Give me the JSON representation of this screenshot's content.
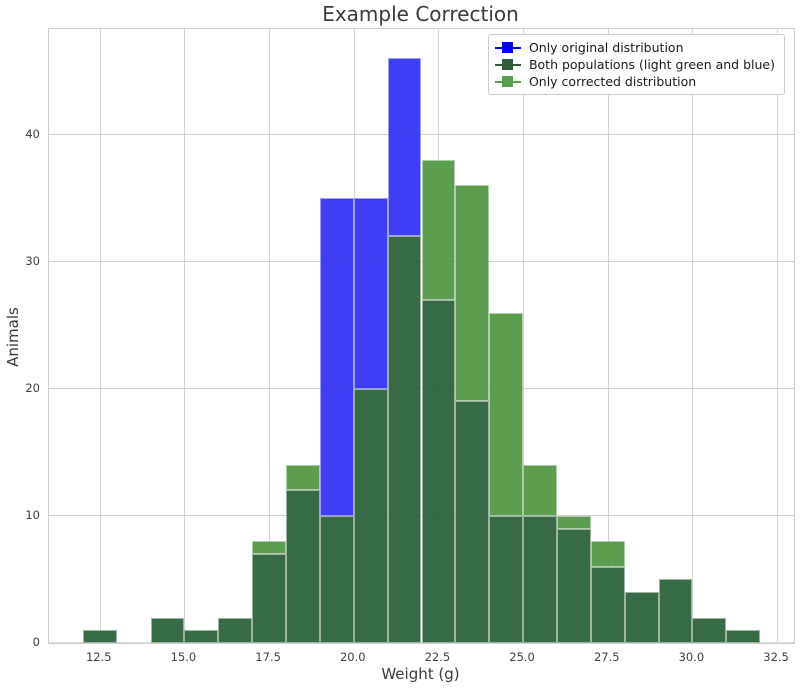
{
  "chart_data": {
    "type": "histogram",
    "title": "Example Correction",
    "xlabel": "Weight (g)",
    "ylabel": "Animals",
    "xlim": [
      11,
      33
    ],
    "ylim": [
      0,
      48.3
    ],
    "xtick_values": [
      12.5,
      15.0,
      17.5,
      20.0,
      22.5,
      25.0,
      27.5,
      30.0,
      32.5
    ],
    "xtick_labels": [
      "12.5",
      "15.0",
      "17.5",
      "20.0",
      "22.5",
      "25.0",
      "27.5",
      "30.0",
      "32.5"
    ],
    "ytick_values": [
      0,
      10,
      20,
      30,
      40
    ],
    "ytick_labels": [
      "0",
      "10",
      "20",
      "30",
      "40"
    ],
    "grid": true,
    "legend_position": "upper right",
    "legend": [
      {
        "name": "original",
        "label": "Only original distribution",
        "color": "#0202f0"
      },
      {
        "name": "both",
        "label": "Both populations (light green and blue)",
        "color": "#2e5c3c"
      },
      {
        "name": "corrected",
        "label": "Only corrected distribution",
        "color": "#57a04e"
      }
    ],
    "bar_colors": {
      "original_only": "#3e3ef4",
      "both": "#366b45",
      "corrected_only": "#5c9e50"
    },
    "bin_width": 1,
    "bins": [
      {
        "x0": 12,
        "x1": 13,
        "both": 1,
        "original": null,
        "corrected": null
      },
      {
        "x0": 13,
        "x1": 14,
        "both": 0,
        "original": null,
        "corrected": null
      },
      {
        "x0": 14,
        "x1": 15,
        "both": 2,
        "original": null,
        "corrected": null
      },
      {
        "x0": 15,
        "x1": 16,
        "both": 1,
        "original": null,
        "corrected": null
      },
      {
        "x0": 16,
        "x1": 17,
        "both": 2,
        "original": null,
        "corrected": null
      },
      {
        "x0": 17,
        "x1": 18,
        "both": 7,
        "original": null,
        "corrected": 8
      },
      {
        "x0": 18,
        "x1": 19,
        "both": 12,
        "original": null,
        "corrected": 14
      },
      {
        "x0": 19,
        "x1": 20,
        "both": 10,
        "original": 35,
        "corrected": null
      },
      {
        "x0": 20,
        "x1": 21,
        "both": 20,
        "original": 35,
        "corrected": null
      },
      {
        "x0": 21,
        "x1": 22,
        "both": 32,
        "original": 46,
        "corrected": null
      },
      {
        "x0": 22,
        "x1": 23,
        "both": 27,
        "original": null,
        "corrected": 38
      },
      {
        "x0": 23,
        "x1": 24,
        "both": 19,
        "original": null,
        "corrected": 36
      },
      {
        "x0": 24,
        "x1": 25,
        "both": 10,
        "original": null,
        "corrected": 26
      },
      {
        "x0": 25,
        "x1": 26,
        "both": 10,
        "original": null,
        "corrected": 14
      },
      {
        "x0": 26,
        "x1": 27,
        "both": 9,
        "original": null,
        "corrected": 10
      },
      {
        "x0": 27,
        "x1": 28,
        "both": 6,
        "original": null,
        "corrected": 8
      },
      {
        "x0": 28,
        "x1": 29,
        "both": 4,
        "original": null,
        "corrected": null
      },
      {
        "x0": 29,
        "x1": 30,
        "both": 5,
        "original": null,
        "corrected": null
      },
      {
        "x0": 30,
        "x1": 31,
        "both": 2,
        "original": null,
        "corrected": null
      },
      {
        "x0": 31,
        "x1": 32,
        "both": 1,
        "original": null,
        "corrected": null
      }
    ]
  }
}
